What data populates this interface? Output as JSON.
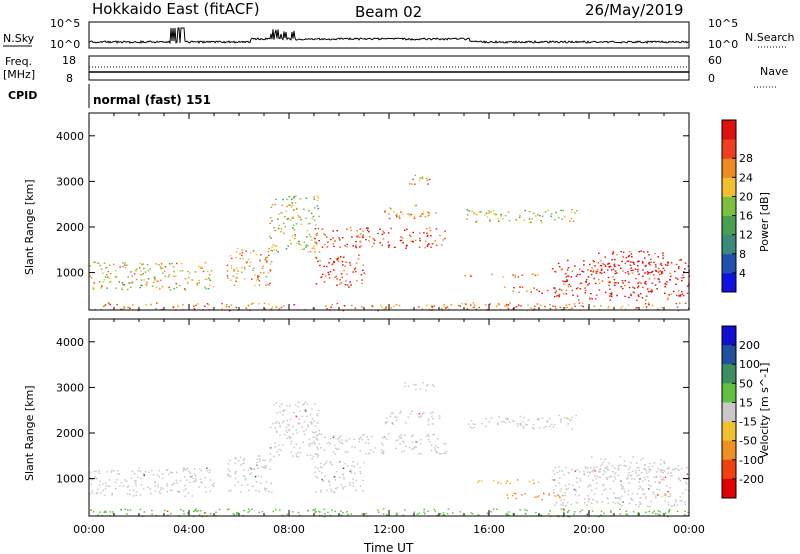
{
  "header": {
    "title": "Hokkaido East (fitACF)",
    "beam": "Beam 02",
    "date": "26/May/2019"
  },
  "status_panels": {
    "nsky_label": "N.Sky",
    "nsky_ticks": [
      "10^5",
      "10^0"
    ],
    "nsearch_label": "N.Search",
    "freq_label_1": "Freq.",
    "freq_label_2": "[MHz]",
    "freq_ticks": [
      "18",
      "8"
    ],
    "nave_label": "Nave",
    "nave_ticks": [
      "60",
      "0"
    ],
    "cpid_label": "CPID",
    "cpid_value": "normal (fast) 151"
  },
  "chart_data": [
    {
      "type": "heatmap",
      "name": "power",
      "ylabel": "Slant Range [km]",
      "xlabel": "Time UT",
      "x_ticks": [
        "00:00",
        "04:00",
        "08:00",
        "12:00",
        "16:00",
        "20:00",
        "00:00"
      ],
      "y_ticks": [
        1000,
        2000,
        3000,
        4000
      ],
      "ylim": [
        180,
        4500
      ],
      "xlim_hours": [
        0,
        24
      ],
      "colorbar": {
        "label": "Power [dB]",
        "ticks": [
          "4",
          "8",
          "12",
          "16",
          "20",
          "24",
          "28"
        ],
        "range": [
          0,
          30
        ],
        "colors": [
          "#1010e0",
          "#2050b0",
          "#3c8a7a",
          "#46a050",
          "#7cc040",
          "#f0c030",
          "#f08a20",
          "#ee4020",
          "#e01010"
        ]
      },
      "regions": [
        {
          "t0": 0.0,
          "t1": 5.0,
          "r0": 620,
          "r1": 1250,
          "value": 18
        },
        {
          "t0": 5.5,
          "t1": 7.3,
          "r0": 700,
          "r1": 1550,
          "value": 20
        },
        {
          "t0": 7.2,
          "t1": 9.2,
          "r0": 1450,
          "r1": 2700,
          "value": 16
        },
        {
          "t0": 9.0,
          "t1": 14.3,
          "r0": 1550,
          "r1": 2000,
          "value": 26
        },
        {
          "t0": 9.0,
          "t1": 11.0,
          "r0": 700,
          "r1": 1400,
          "value": 26
        },
        {
          "t0": 11.8,
          "t1": 14.0,
          "r0": 2200,
          "r1": 2500,
          "value": 20
        },
        {
          "t0": 12.5,
          "t1": 13.8,
          "r0": 2950,
          "r1": 3150,
          "value": 20
        },
        {
          "t0": 15.0,
          "t1": 18.0,
          "r0": 900,
          "r1": 1000,
          "value": 24
        },
        {
          "t0": 16.5,
          "t1": 19.0,
          "r0": 550,
          "r1": 700,
          "value": 26
        },
        {
          "t0": 15.0,
          "t1": 19.5,
          "r0": 2100,
          "r1": 2400,
          "value": 16
        },
        {
          "t0": 18.5,
          "t1": 24.0,
          "r0": 400,
          "r1": 1300,
          "value": 28
        },
        {
          "t0": 20.0,
          "t1": 23.0,
          "r0": 1000,
          "r1": 1500,
          "value": 28
        },
        {
          "t0": 0.0,
          "t1": 24.0,
          "r0": 180,
          "r1": 350,
          "value": 22
        }
      ]
    },
    {
      "type": "heatmap",
      "name": "velocity",
      "ylabel": "Slant Range [km]",
      "xlabel": "Time UT",
      "x_ticks": [
        "00:00",
        "04:00",
        "08:00",
        "12:00",
        "16:00",
        "20:00",
        "00:00"
      ],
      "y_ticks": [
        1000,
        2000,
        3000,
        4000
      ],
      "ylim": [
        180,
        4500
      ],
      "xlim_hours": [
        0,
        24
      ],
      "colorbar": {
        "label": "Velocity [m s^-1]",
        "ticks": [
          "200",
          "100",
          "50",
          "15",
          "-15",
          "-50",
          "-100",
          "-200"
        ],
        "colors": [
          "#1010d0",
          "#2050a0",
          "#3c9060",
          "#60c040",
          "#c8c8c8",
          "#f0c030",
          "#f09020",
          "#f04010",
          "#e00000"
        ]
      },
      "regions": [
        {
          "t0": 0.0,
          "t1": 5.0,
          "r0": 620,
          "r1": 1250,
          "value": 0
        },
        {
          "t0": 5.5,
          "t1": 7.3,
          "r0": 700,
          "r1": 1550,
          "value": 0
        },
        {
          "t0": 7.2,
          "t1": 9.2,
          "r0": 1450,
          "r1": 2700,
          "value": 0
        },
        {
          "t0": 9.0,
          "t1": 14.3,
          "r0": 1550,
          "r1": 2000,
          "value": 0
        },
        {
          "t0": 9.0,
          "t1": 11.0,
          "r0": 700,
          "r1": 1400,
          "value": 0
        },
        {
          "t0": 11.8,
          "t1": 14.0,
          "r0": 2200,
          "r1": 2500,
          "value": 0
        },
        {
          "t0": 12.5,
          "t1": 13.8,
          "r0": 2950,
          "r1": 3150,
          "value": 0
        },
        {
          "t0": 15.0,
          "t1": 18.0,
          "r0": 900,
          "r1": 1000,
          "value": -40
        },
        {
          "t0": 16.5,
          "t1": 19.0,
          "r0": 550,
          "r1": 700,
          "value": -80
        },
        {
          "t0": 15.0,
          "t1": 19.5,
          "r0": 2100,
          "r1": 2400,
          "value": 0
        },
        {
          "t0": 18.5,
          "t1": 24.0,
          "r0": 400,
          "r1": 1300,
          "value": 0
        },
        {
          "t0": 20.0,
          "t1": 23.0,
          "r0": 1000,
          "r1": 1500,
          "value": 0
        },
        {
          "t0": 0.0,
          "t1": 24.0,
          "r0": 180,
          "r1": 350,
          "value": 30
        }
      ]
    }
  ],
  "colors": {
    "sky_line": "#000000",
    "background": "#ffffff"
  }
}
